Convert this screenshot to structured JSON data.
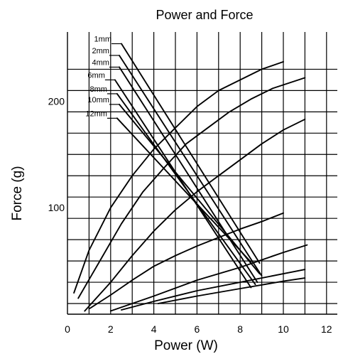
{
  "chart_data": {
    "type": "line",
    "title": "Power and Force",
    "xlabel": "Power (W)",
    "ylabel": "Force (g)",
    "xlim": [
      0,
      12.5
    ],
    "ylim": [
      0,
      265
    ],
    "x_ticks": [
      0,
      2,
      4,
      6,
      8,
      10,
      12
    ],
    "y_ticks": [
      100,
      200
    ],
    "grid_x": [
      1,
      2,
      3,
      4,
      5,
      6,
      7,
      8,
      9,
      10,
      11,
      12
    ],
    "grid_y": [
      10,
      30,
      50,
      70,
      90,
      110,
      130,
      150,
      170,
      190,
      210,
      230
    ],
    "grid": true,
    "legend_entries": [
      "1mm",
      "2mm",
      "4mm",
      "6mm",
      "8mm",
      "10mm",
      "12mm"
    ],
    "legend_lines": [
      {
        "name": "1mm",
        "points": [
          [
            2.5,
            254
          ],
          [
            8.9,
            48
          ]
        ]
      },
      {
        "name": "2mm",
        "points": [
          [
            2.4,
            243
          ],
          [
            9.0,
            36
          ]
        ]
      },
      {
        "name": "4mm",
        "points": [
          [
            2.4,
            232
          ],
          [
            8.8,
            30
          ]
        ]
      },
      {
        "name": "6mm",
        "points": [
          [
            2.2,
            220
          ],
          [
            8.5,
            25
          ]
        ]
      },
      {
        "name": "8mm",
        "points": [
          [
            2.3,
            207
          ],
          [
            8.7,
            28
          ]
        ]
      },
      {
        "name": "10mm",
        "points": [
          [
            2.4,
            197
          ],
          [
            8.9,
            38
          ]
        ]
      },
      {
        "name": "12mm",
        "points": [
          [
            2.3,
            184
          ],
          [
            8.5,
            49
          ]
        ]
      }
    ],
    "curves": [
      {
        "points": [
          [
            0.3,
            20
          ],
          [
            1.0,
            60
          ],
          [
            2.0,
            100
          ],
          [
            3.0,
            130
          ],
          [
            4.0,
            155
          ],
          [
            5.0,
            175
          ],
          [
            6.0,
            195
          ],
          [
            7.0,
            210
          ],
          [
            8.0,
            220
          ],
          [
            9.0,
            230
          ],
          [
            10.0,
            237
          ]
        ]
      },
      {
        "points": [
          [
            0.5,
            15
          ],
          [
            1.5,
            50
          ],
          [
            2.5,
            85
          ],
          [
            3.5,
            115
          ],
          [
            4.5,
            138
          ],
          [
            5.5,
            160
          ],
          [
            6.5,
            175
          ],
          [
            7.5,
            190
          ],
          [
            8.5,
            202
          ],
          [
            9.5,
            212
          ],
          [
            11.0,
            222
          ]
        ]
      },
      {
        "points": [
          [
            0.8,
            3
          ],
          [
            2.0,
            30
          ],
          [
            3.0,
            55
          ],
          [
            4.0,
            78
          ],
          [
            5.0,
            98
          ],
          [
            6.0,
            115
          ],
          [
            7.0,
            130
          ],
          [
            8.0,
            145
          ],
          [
            9.0,
            160
          ],
          [
            10.0,
            173
          ],
          [
            11.0,
            183
          ]
        ]
      },
      {
        "points": [
          [
            1.0,
            5
          ],
          [
            2.0,
            18
          ],
          [
            3.0,
            32
          ],
          [
            4.0,
            45
          ],
          [
            5.0,
            55
          ],
          [
            6.0,
            64
          ],
          [
            7.0,
            72
          ],
          [
            8.0,
            80
          ],
          [
            9.0,
            87
          ],
          [
            10.0,
            95
          ]
        ]
      },
      {
        "points": [
          [
            2.0,
            3
          ],
          [
            4.0,
            17
          ],
          [
            6.0,
            32
          ],
          [
            8.0,
            44
          ],
          [
            10.0,
            58
          ],
          [
            11.1,
            65
          ]
        ]
      },
      {
        "points": [
          [
            2.5,
            4
          ],
          [
            4.0,
            12
          ],
          [
            6.0,
            22
          ],
          [
            8.0,
            30
          ],
          [
            10.0,
            38
          ],
          [
            11.0,
            42
          ]
        ]
      },
      {
        "points": [
          [
            4.2,
            10
          ],
          [
            6.0,
            17
          ],
          [
            8.0,
            24
          ],
          [
            10.0,
            31
          ],
          [
            11.0,
            34
          ]
        ]
      }
    ]
  }
}
